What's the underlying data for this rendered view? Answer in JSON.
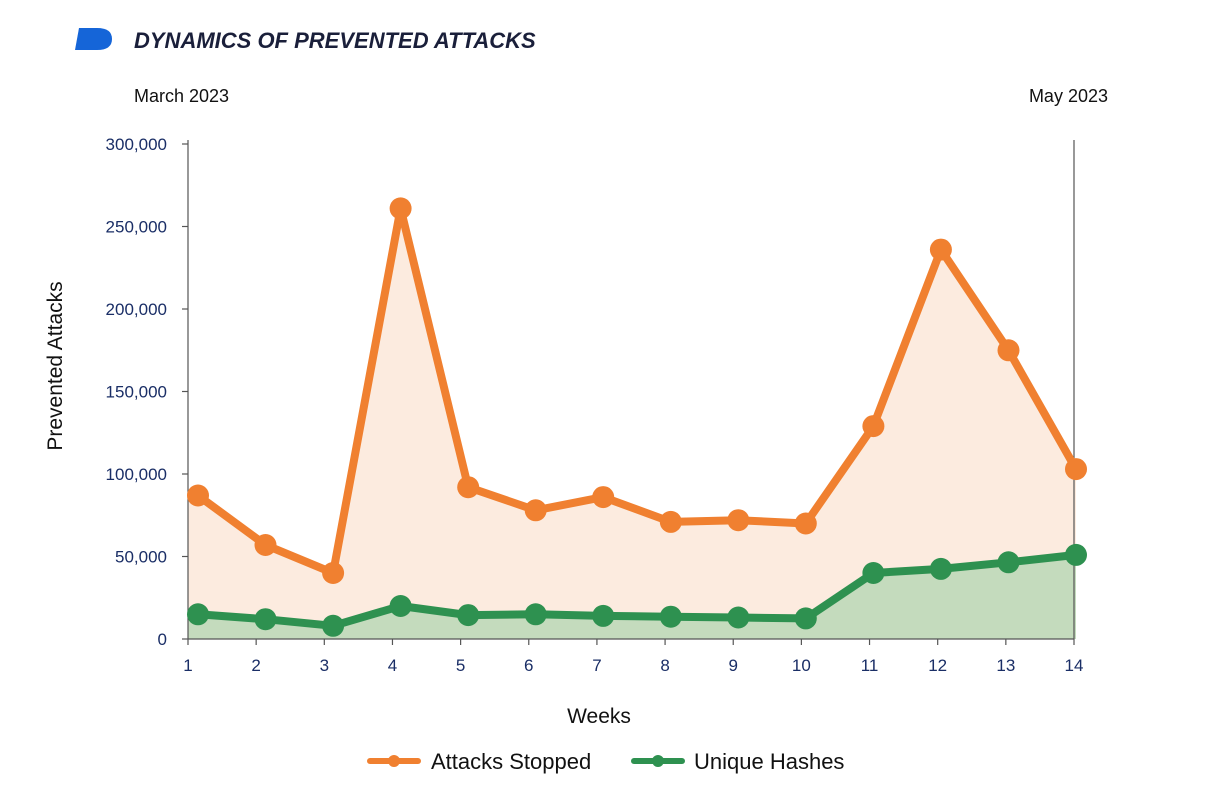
{
  "header": {
    "title": "DYNAMICS OF PREVENTED ATTACKS",
    "period_start": "March 2023",
    "period_end": "May 2023",
    "logo_icon": "brand-logo-icon",
    "logo_color": "#1565d8"
  },
  "chart_data": {
    "type": "area",
    "title": "DYNAMICS OF PREVENTED ATTACKS",
    "xlabel": "Weeks",
    "ylabel": "Prevented Attacks",
    "categories": [
      "1",
      "2",
      "3",
      "4",
      "5",
      "6",
      "7",
      "8",
      "9",
      "10",
      "11",
      "12",
      "13",
      "14"
    ],
    "x": [
      1,
      2,
      3,
      4,
      5,
      6,
      7,
      8,
      9,
      10,
      11,
      12,
      13,
      14
    ],
    "ylim": [
      0,
      300000
    ],
    "yticks": [
      0,
      50000,
      100000,
      150000,
      200000,
      250000,
      300000
    ],
    "ytick_labels": [
      "0",
      "50,000",
      "100,000",
      "150,000",
      "200,000",
      "250,000",
      "300,000"
    ],
    "grid": false,
    "legend": "bottom-center",
    "series": [
      {
        "name": "Attacks Stopped",
        "color": "#f08030",
        "fill": "#fcebdf",
        "values": [
          87000,
          57000,
          40000,
          261000,
          92000,
          78000,
          86000,
          71000,
          72000,
          70000,
          129000,
          236000,
          175000,
          103000
        ]
      },
      {
        "name": "Unique Hashes",
        "color": "#2e9150",
        "fill": "#c4dbbd",
        "values": [
          15000,
          12000,
          8000,
          20000,
          14500,
          15000,
          14000,
          13500,
          13000,
          12500,
          40000,
          42500,
          46500,
          51000
        ]
      }
    ]
  }
}
